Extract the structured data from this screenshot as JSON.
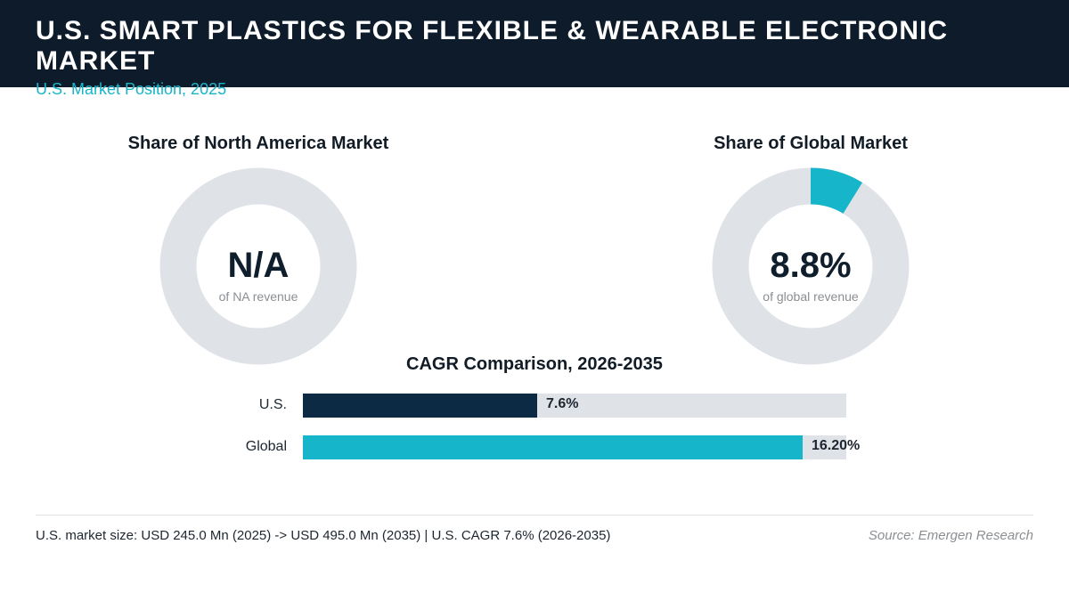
{
  "header": {
    "title": "U.S. SMART PLASTICS FOR FLEXIBLE & WEARABLE ELECTRONIC MARKET",
    "subtitle": "U.S. Market Position, 2025"
  },
  "chart_data": [
    {
      "type": "pie",
      "title": "Share of North America Market",
      "center_value": "N/A",
      "center_caption": "of NA revenue",
      "value": null,
      "colors": {
        "fill": "#17b5c9",
        "track": "#dfe3e8"
      }
    },
    {
      "type": "pie",
      "title": "Share of Global Market",
      "center_value": "8.8%",
      "center_caption": "of global revenue",
      "value": 8.8,
      "colors": {
        "fill": "#17b5c9",
        "track": "#dfe3e8"
      }
    },
    {
      "type": "bar",
      "orientation": "horizontal",
      "title": "CAGR Comparison, 2026-2035",
      "categories": [
        "U.S.",
        "Global"
      ],
      "values": [
        7.6,
        16.2
      ],
      "value_labels": [
        "7.6%",
        "16.20%"
      ],
      "xlim": [
        0,
        16.2
      ],
      "colors": [
        "#0c2a44",
        "#17b5c9"
      ],
      "track_color": "#dfe3e8"
    }
  ],
  "footer": {
    "note": "U.S. market size: USD 245.0 Mn (2025) -> USD 495.0 Mn (2035)  |  U.S. CAGR 7.6% (2026-2035)",
    "source": "Source: Emergen Research"
  }
}
